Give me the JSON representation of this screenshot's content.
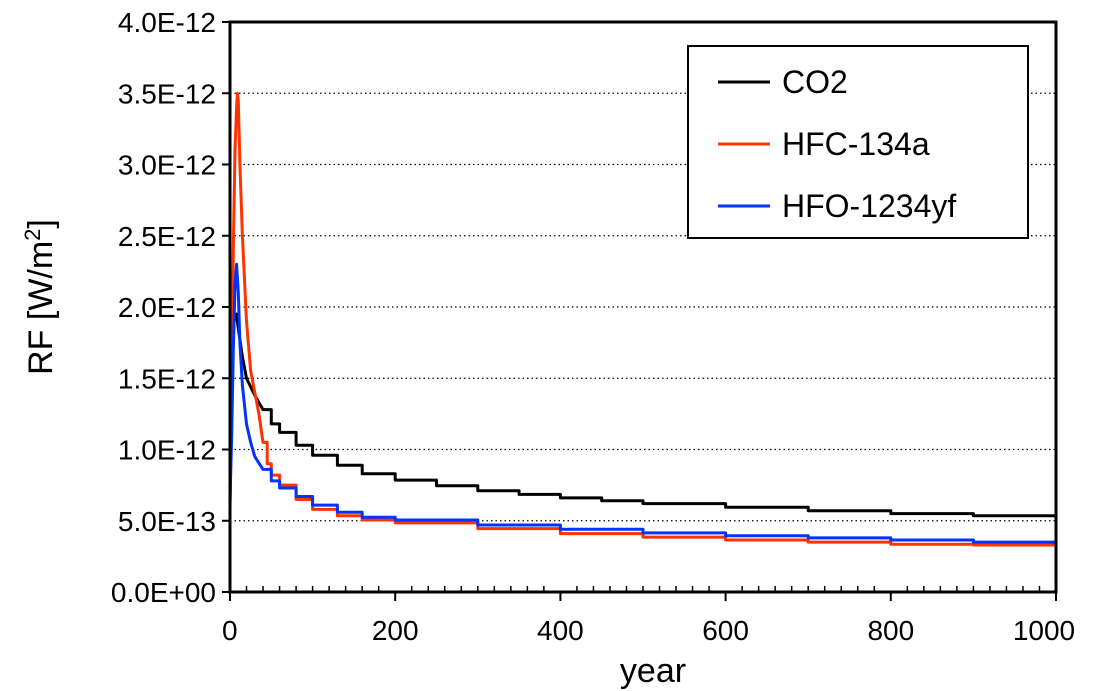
{
  "chart_data": {
    "type": "line",
    "title": "",
    "xlabel": "year",
    "ylabel": "RF [W/m",
    "ylabel_superscript": "2",
    "ylabel_suffix": "]",
    "xlim": [
      0,
      1000
    ],
    "ylim": [
      0,
      4e-12
    ],
    "x_ticks": [
      0,
      200,
      400,
      600,
      800,
      1000
    ],
    "x_tick_labels": [
      "0",
      "200",
      "400",
      "600",
      "800",
      "1000"
    ],
    "y_ticks": [
      0,
      5e-13,
      1e-12,
      1.5e-12,
      2e-12,
      2.5e-12,
      3e-12,
      3.5e-12,
      4e-12
    ],
    "y_tick_labels": [
      "0.0E+00",
      "5.0E-13",
      "1.0E-12",
      "1.5E-12",
      "2.0E-12",
      "2.5E-12",
      "3.0E-12",
      "3.5E-12",
      "4.0E-12"
    ],
    "grid": {
      "y_major": true,
      "style": "dotted",
      "x_major": false
    },
    "legend": {
      "position": "top-right"
    },
    "series": [
      {
        "name": "CO2",
        "color": "#000000",
        "points": [
          [
            0,
            5.8e-13
          ],
          [
            1,
            1.2e-12
          ],
          [
            3,
            1.7e-12
          ],
          [
            5,
            1.9e-12
          ],
          [
            8,
            1.95e-12
          ],
          [
            10,
            1.85e-12
          ],
          [
            15,
            1.65e-12
          ],
          [
            20,
            1.5e-12
          ],
          [
            30,
            1.38e-12
          ],
          [
            40,
            1.28e-12
          ],
          [
            50,
            1.18e-12
          ],
          [
            60,
            1.12e-12
          ],
          [
            80,
            1.03e-12
          ],
          [
            100,
            9.6e-13
          ],
          [
            130,
            8.9e-13
          ],
          [
            160,
            8.3e-13
          ],
          [
            200,
            7.85e-13
          ],
          [
            250,
            7.45e-13
          ],
          [
            300,
            7.1e-13
          ],
          [
            350,
            6.85e-13
          ],
          [
            400,
            6.6e-13
          ],
          [
            450,
            6.4e-13
          ],
          [
            500,
            6.2e-13
          ],
          [
            600,
            5.95e-13
          ],
          [
            700,
            5.7e-13
          ],
          [
            800,
            5.5e-13
          ],
          [
            900,
            5.35e-13
          ],
          [
            1000,
            5.25e-13
          ]
        ]
      },
      {
        "name": "HFC-134a",
        "color": "#ff3300",
        "points": [
          [
            0,
            6.2e-13
          ],
          [
            2,
            1.5e-12
          ],
          [
            4,
            2.4e-12
          ],
          [
            6,
            3.1e-12
          ],
          [
            8,
            3.4e-12
          ],
          [
            9,
            3.5e-12
          ],
          [
            10,
            3.45e-12
          ],
          [
            12,
            3e-12
          ],
          [
            15,
            2.5e-12
          ],
          [
            20,
            1.9e-12
          ],
          [
            25,
            1.55e-12
          ],
          [
            30,
            1.4e-12
          ],
          [
            35,
            1.25e-12
          ],
          [
            40,
            1.05e-12
          ],
          [
            45,
            9e-13
          ],
          [
            50,
            8.2e-13
          ],
          [
            60,
            7.5e-13
          ],
          [
            80,
            6.5e-13
          ],
          [
            100,
            5.8e-13
          ],
          [
            130,
            5.35e-13
          ],
          [
            160,
            5.05e-13
          ],
          [
            200,
            4.85e-13
          ],
          [
            300,
            4.45e-13
          ],
          [
            400,
            4.1e-13
          ],
          [
            500,
            3.85e-13
          ],
          [
            600,
            3.65e-13
          ],
          [
            700,
            3.5e-13
          ],
          [
            800,
            3.35e-13
          ],
          [
            900,
            3.3e-13
          ],
          [
            1000,
            3.25e-13
          ]
        ]
      },
      {
        "name": "HFO-1234yf",
        "color": "#0033ff",
        "points": [
          [
            0,
            6.5e-13
          ],
          [
            2,
            1.1e-12
          ],
          [
            4,
            1.7e-12
          ],
          [
            6,
            2.15e-12
          ],
          [
            8,
            2.3e-12
          ],
          [
            10,
            2.1e-12
          ],
          [
            12,
            1.75e-12
          ],
          [
            15,
            1.45e-12
          ],
          [
            20,
            1.18e-12
          ],
          [
            25,
            1.05e-12
          ],
          [
            30,
            9.5e-13
          ],
          [
            40,
            8.6e-13
          ],
          [
            50,
            7.8e-13
          ],
          [
            60,
            7.3e-13
          ],
          [
            80,
            6.7e-13
          ],
          [
            100,
            6.1e-13
          ],
          [
            130,
            5.6e-13
          ],
          [
            160,
            5.25e-13
          ],
          [
            200,
            5.05e-13
          ],
          [
            300,
            4.7e-13
          ],
          [
            400,
            4.4e-13
          ],
          [
            500,
            4.15e-13
          ],
          [
            600,
            3.95e-13
          ],
          [
            700,
            3.8e-13
          ],
          [
            800,
            3.65e-13
          ],
          [
            900,
            3.5e-13
          ],
          [
            1000,
            3.4e-13
          ]
        ]
      }
    ]
  }
}
